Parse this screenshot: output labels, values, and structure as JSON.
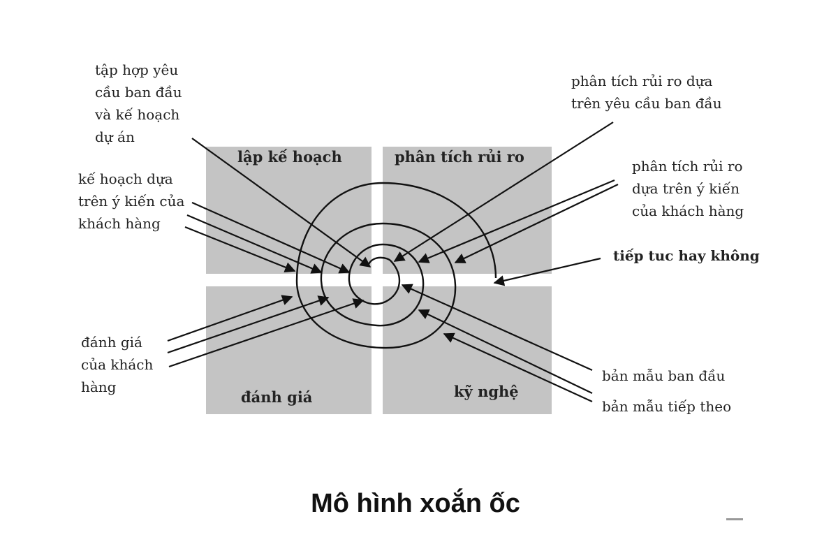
{
  "quadrants": {
    "planning": "lập kế hoạch",
    "risk_analysis": "phân tích rủi  ro",
    "evaluation": "đánh giá",
    "engineering": "kỹ nghệ"
  },
  "annotations": {
    "initial_requirements": [
      "tập hợp yêu",
      "cầu ban đầu",
      "và kế hoạch",
      "dự án"
    ],
    "planning_on_feedback": [
      "kế hoạch dựa",
      "trên ý kiến của",
      "khách hàng"
    ],
    "risk_on_initial": [
      "phân tích rủi ro dựa",
      "trên yêu cầu ban đầu"
    ],
    "risk_on_feedback": [
      "phân tích rủi ro",
      "dựa trên ý kiến",
      "của khách hàng"
    ],
    "go_no_go": [
      "tiếp tuc hay không"
    ],
    "customer_evaluation": [
      "đánh giá",
      "của khách",
      "hàng"
    ],
    "initial_prototype": [
      "bản mẫu ban đầu"
    ],
    "next_prototype": [
      "bản mẫu tiếp theo"
    ]
  },
  "title": "Mô hình xoắn ốc",
  "colors": {
    "quadrant_fill": "#c4c4c4",
    "line": "#111111",
    "text": "#222222"
  }
}
